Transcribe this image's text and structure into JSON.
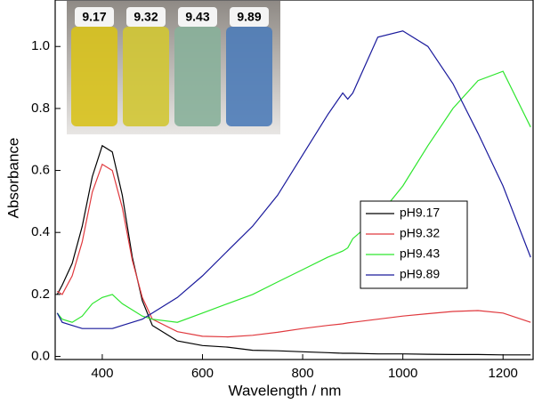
{
  "chart_data": {
    "type": "line",
    "xlabel": "Wavelength / nm",
    "ylabel": "Absorbance",
    "x": [
      310,
      320,
      340,
      360,
      380,
      400,
      420,
      440,
      460,
      480,
      500,
      550,
      600,
      650,
      700,
      750,
      800,
      850,
      880,
      890,
      900,
      950,
      1000,
      1050,
      1100,
      1150,
      1200,
      1255
    ],
    "series": [
      {
        "name": "pH9.17",
        "color": "#000000",
        "values": [
          0.2,
          0.23,
          0.3,
          0.42,
          0.58,
          0.68,
          0.66,
          0.52,
          0.32,
          0.18,
          0.1,
          0.05,
          0.035,
          0.03,
          0.02,
          0.018,
          0.015,
          0.012,
          0.01,
          0.01,
          0.01,
          0.008,
          0.008,
          0.007,
          0.006,
          0.006,
          0.005,
          0.005
        ]
      },
      {
        "name": "pH9.32",
        "color": "#e0393e",
        "values": [
          0.21,
          0.2,
          0.26,
          0.37,
          0.53,
          0.62,
          0.6,
          0.48,
          0.31,
          0.19,
          0.12,
          0.08,
          0.065,
          0.063,
          0.068,
          0.078,
          0.09,
          0.1,
          0.105,
          0.108,
          0.11,
          0.12,
          0.13,
          0.138,
          0.145,
          0.148,
          0.14,
          0.11
        ]
      },
      {
        "name": "pH9.43",
        "color": "#2ee62e",
        "values": [
          0.14,
          0.12,
          0.11,
          0.13,
          0.17,
          0.19,
          0.2,
          0.17,
          0.15,
          0.13,
          0.12,
          0.11,
          0.14,
          0.17,
          0.2,
          0.24,
          0.28,
          0.32,
          0.34,
          0.35,
          0.38,
          0.45,
          0.55,
          0.68,
          0.8,
          0.89,
          0.92,
          0.74
        ]
      },
      {
        "name": "pH9.89",
        "color": "#1a1a9c",
        "values": [
          0.14,
          0.11,
          0.1,
          0.09,
          0.09,
          0.09,
          0.09,
          0.1,
          0.11,
          0.12,
          0.14,
          0.19,
          0.26,
          0.34,
          0.42,
          0.52,
          0.65,
          0.78,
          0.85,
          0.83,
          0.85,
          1.03,
          1.05,
          1.0,
          0.88,
          0.72,
          0.55,
          0.32
        ]
      }
    ],
    "xlim": [
      306,
      1260
    ],
    "ylim": [
      -0.01,
      1.15
    ],
    "xticks": [
      400,
      600,
      800,
      1000,
      1200
    ],
    "yticks": [
      {
        "value": 0,
        "label": "0.0"
      },
      0.2,
      0.4,
      0.6,
      0.8,
      {
        "value": 1,
        "label": "1.0"
      }
    ],
    "legend": "right",
    "inset_labels": [
      "9.17",
      "9.32",
      "9.43",
      "9.89"
    ]
  }
}
